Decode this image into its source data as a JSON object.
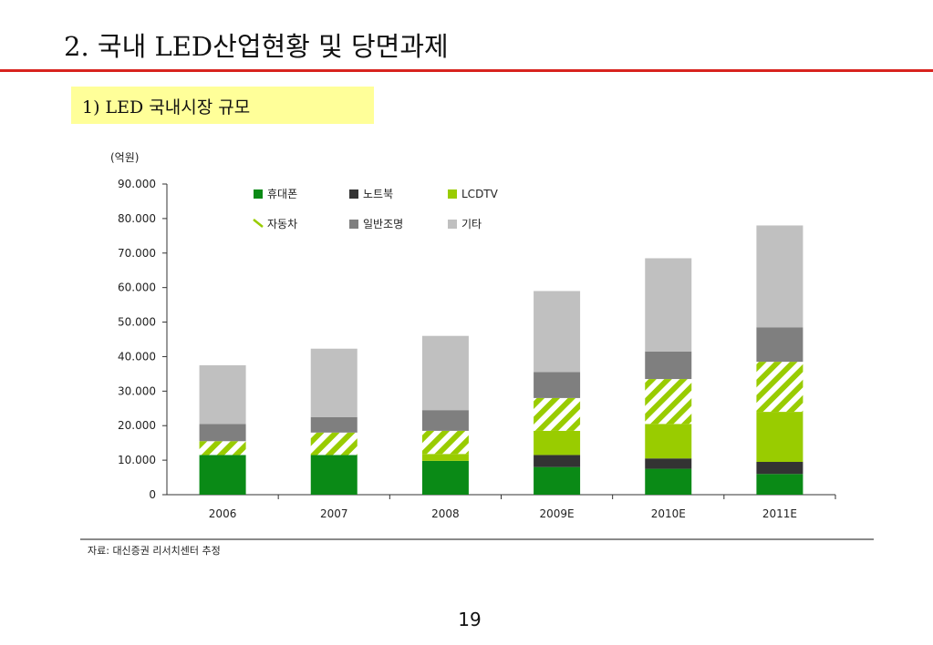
{
  "slide": {
    "title": "2. 국내 LED산업현황 및 당면과제",
    "subtitle": "1) LED 국내시장 규모",
    "page_number": "19"
  },
  "chart_data": {
    "type": "bar",
    "stacked": true,
    "unit_label": "(억원)",
    "categories": [
      "2006",
      "2007",
      "2008",
      "2009E",
      "2010E",
      "2011E"
    ],
    "yticks": [
      "0",
      "10.000",
      "20.000",
      "30.000",
      "40.000",
      "50.000",
      "60.000",
      "70.000",
      "80.000",
      "90.000"
    ],
    "ylim": [
      0,
      90000
    ],
    "legend_position": "top-left",
    "series": [
      {
        "name": "휴대폰",
        "color": "#0a8a16",
        "pattern": "solid",
        "values": [
          11500,
          11500,
          9800,
          8000,
          7500,
          6000
        ]
      },
      {
        "name": "노트북",
        "color": "#333333",
        "pattern": "solid",
        "values": [
          0,
          0,
          0,
          3500,
          3000,
          3500
        ]
      },
      {
        "name": "LCDTV",
        "color": "#99cc00",
        "pattern": "solid",
        "values": [
          0,
          0,
          2000,
          7000,
          10000,
          14500
        ]
      },
      {
        "name": "자동차",
        "color": "#99cc00",
        "pattern": "hatch",
        "values": [
          4000,
          6500,
          6700,
          9500,
          13000,
          14500
        ]
      },
      {
        "name": "일반조명",
        "color": "#7f7f7f",
        "pattern": "solid",
        "values": [
          5000,
          4500,
          6000,
          7500,
          8000,
          10000
        ]
      },
      {
        "name": "기타",
        "color": "#c0c0c0",
        "pattern": "solid",
        "values": [
          17000,
          19800,
          21500,
          23500,
          27000,
          29500
        ]
      }
    ],
    "source": "자료: 대신증권 리서치센터 추정"
  }
}
